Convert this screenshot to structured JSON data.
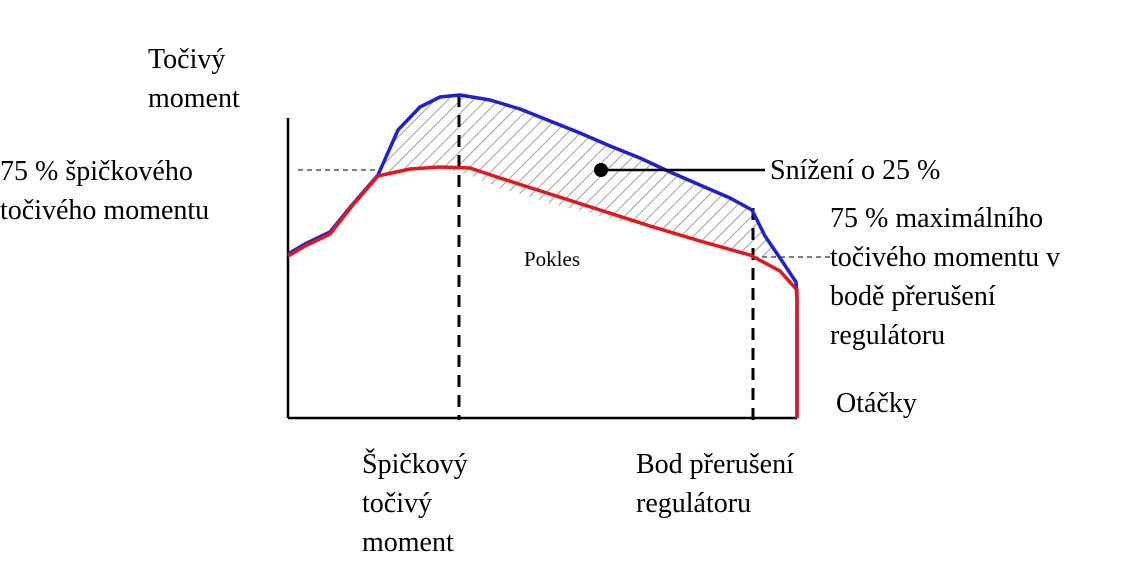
{
  "labels": {
    "y_axis": [
      "Točivý",
      "moment"
    ],
    "x_axis": "Otáčky",
    "peak_75": [
      "75 % špičkového",
      "točivého momentu"
    ],
    "reduction": "Snížení o 25 %",
    "governor_75": [
      "75 % maximálního",
      "točivého momentu v",
      "bodě přerušení",
      "regulátoru"
    ],
    "drop": "Pokles",
    "peak_torque": [
      "Špičkový",
      "točivý",
      "moment"
    ],
    "governor_break": [
      "Bod přerušení",
      "regulátoru"
    ]
  },
  "colors": {
    "original_curve": "#1f1fd6",
    "reduced_curve": "#e8141c",
    "axes": "#000000",
    "hatch": "#8a8a8a"
  }
}
